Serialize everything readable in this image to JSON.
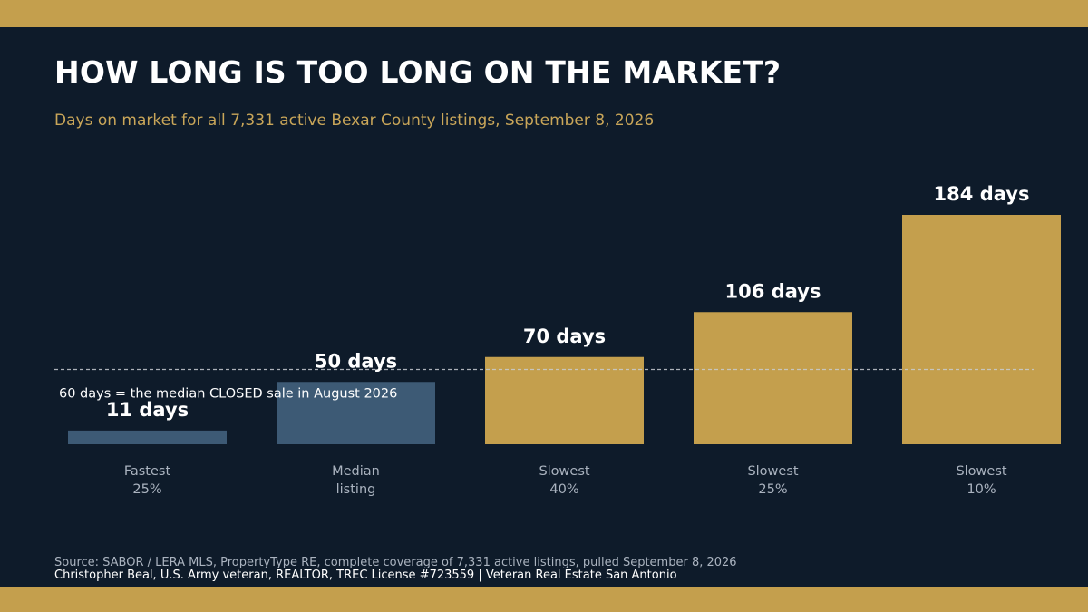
{
  "title": "HOW LONG IS TOO LONG ON THE MARKET?",
  "subtitle": "Days on market for all 7,331 active Bexar County listings, September 8, 2026",
  "source": "Source: SABOR / LERA MLS, PropertyType RE, complete coverage of 7,331 active listings, pulled September 8, 2026",
  "credit": "Christopher Beal, U.S. Army veteran, REALTOR, TREC License #723559 | Veteran Real Estate San Antonio",
  "colors": {
    "background": "#0e1b2a",
    "accent_gold": "#c49f4d",
    "bar_blue": "#3d5a75",
    "text_white": "#ffffff",
    "muted_text": "#aab3bf"
  },
  "chart_data": {
    "type": "bar",
    "categories": [
      [
        "Fastest",
        "25%"
      ],
      [
        "Median",
        "listing"
      ],
      [
        "Slowest",
        "40%"
      ],
      [
        "Slowest",
        "25%"
      ],
      [
        "Slowest",
        "10%"
      ]
    ],
    "values": [
      11,
      50,
      70,
      106,
      184
    ],
    "value_labels": [
      "11 days",
      "50 days",
      "70 days",
      "106 days",
      "184 days"
    ],
    "bar_colors": [
      "#3d5a75",
      "#3d5a75",
      "#c49f4d",
      "#c49f4d",
      "#c49f4d"
    ],
    "ylim": [
      0,
      184
    ],
    "reference_line": {
      "value": 60,
      "label": "60 days = the median CLOSED sale in August 2026"
    },
    "grid": false,
    "legend": "none"
  }
}
